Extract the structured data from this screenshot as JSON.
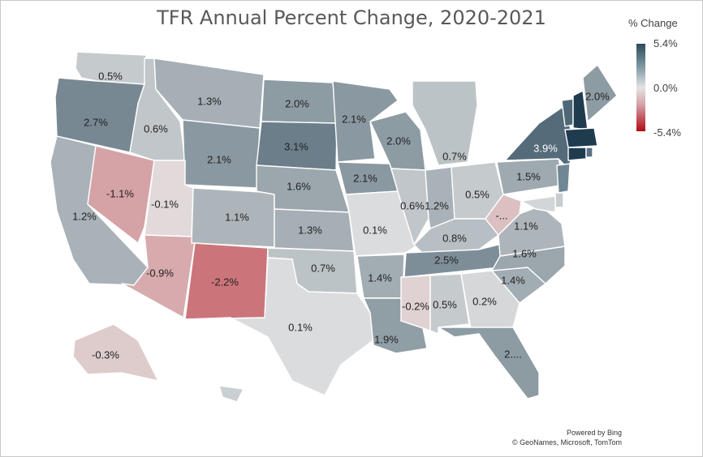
{
  "title": "TFR Annual Percent Change, 2020-2021",
  "legend": {
    "title": "% Change",
    "max": "5.4%",
    "mid": "0.0%",
    "min": "-5.4%",
    "colors": {
      "high": "#2d4a5c",
      "mid": "#e4e4e4",
      "low": "#b20a14"
    }
  },
  "attribution": {
    "line1": "Powered by Bing",
    "line2": "© GeoNames, Microsoft, TomTom"
  },
  "states": [
    {
      "id": "WA",
      "value": 0.5,
      "label": "0.5%"
    },
    {
      "id": "OR",
      "value": 2.7,
      "label": "2.7%"
    },
    {
      "id": "CA",
      "value": 1.2,
      "label": "1.2%"
    },
    {
      "id": "NV",
      "value": -1.1,
      "label": "-1.1%"
    },
    {
      "id": "ID",
      "value": 0.6,
      "label": "0.6%"
    },
    {
      "id": "MT",
      "value": 1.3,
      "label": "1.3%"
    },
    {
      "id": "WY",
      "value": 2.1,
      "label": "2.1%"
    },
    {
      "id": "UT",
      "value": -0.1,
      "label": "-0.1%"
    },
    {
      "id": "AZ",
      "value": -0.9,
      "label": "-0.9%"
    },
    {
      "id": "CO",
      "value": 1.1,
      "label": "1.1%"
    },
    {
      "id": "NM",
      "value": -2.2,
      "label": "-2.2%"
    },
    {
      "id": "ND",
      "value": 2.0,
      "label": "2.0%"
    },
    {
      "id": "SD",
      "value": 3.1,
      "label": "3.1%"
    },
    {
      "id": "NE",
      "value": 1.6,
      "label": "1.6%"
    },
    {
      "id": "KS",
      "value": 1.3,
      "label": "1.3%"
    },
    {
      "id": "OK",
      "value": 0.7,
      "label": "0.7%"
    },
    {
      "id": "TX",
      "value": 0.1,
      "label": "0.1%"
    },
    {
      "id": "MN",
      "value": 2.1,
      "label": "2.1%"
    },
    {
      "id": "IA",
      "value": 2.1,
      "label": "2.1%"
    },
    {
      "id": "MO",
      "value": 0.1,
      "label": "0.1%"
    },
    {
      "id": "AR",
      "value": 1.4,
      "label": "1.4%"
    },
    {
      "id": "LA",
      "value": 1.9,
      "label": "1.9%"
    },
    {
      "id": "WI",
      "value": 2.0,
      "label": "2.0%"
    },
    {
      "id": "IL",
      "value": 0.6,
      "label": "0.6%"
    },
    {
      "id": "MI",
      "value": 0.7,
      "label": "0.7%"
    },
    {
      "id": "IN",
      "value": 1.2,
      "label": "1.2%"
    },
    {
      "id": "OH",
      "value": 0.5,
      "label": "0.5%"
    },
    {
      "id": "KY",
      "value": 0.8,
      "label": "0.8%"
    },
    {
      "id": "TN",
      "value": 2.5,
      "label": "2.5%"
    },
    {
      "id": "MS",
      "value": -0.2,
      "label": "-0.2%"
    },
    {
      "id": "AL",
      "value": 0.5,
      "label": "0.5%"
    },
    {
      "id": "GA",
      "value": 0.2,
      "label": "0.2%"
    },
    {
      "id": "FL",
      "value": 2.0,
      "label": "2...."
    },
    {
      "id": "SC",
      "value": 1.4,
      "label": "1.4%"
    },
    {
      "id": "NC",
      "value": 1.6,
      "label": "1.6%"
    },
    {
      "id": "VA",
      "value": 1.1,
      "label": "1.1%"
    },
    {
      "id": "WV",
      "value": -0.5,
      "label": "-..."
    },
    {
      "id": "PA",
      "value": 1.5,
      "label": "1.5%"
    },
    {
      "id": "NY",
      "value": 3.9,
      "label": "3.9%"
    },
    {
      "id": "ME",
      "value": 2.0,
      "label": "2.0%"
    },
    {
      "id": "AK",
      "value": -0.3,
      "label": "-0.3%"
    }
  ]
}
